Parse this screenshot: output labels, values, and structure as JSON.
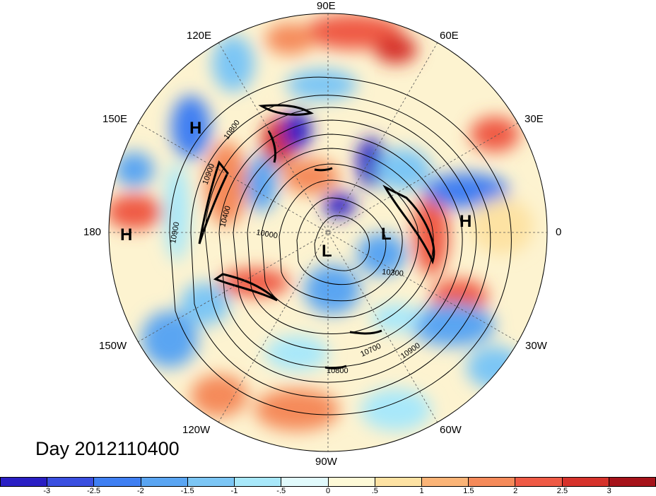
{
  "map": {
    "projection": "north-polar-stereographic",
    "longitude_labels": {
      "lon_90E": "90E",
      "lon_60E": "60E",
      "lon_30E": "30E",
      "lon_0": "0",
      "lon_30W": "30W",
      "lon_60W": "60W",
      "lon_90W": "90W",
      "lon_120W": "120W",
      "lon_150W": "150W",
      "lon_180": "180",
      "lon_150E": "150E",
      "lon_120E": "120E"
    },
    "pressure_centers": {
      "high_150E": "H",
      "high_180": "H",
      "high_europe": "H",
      "low_atlantic": "L",
      "low_pole": "L"
    },
    "contour_labels": {
      "c_10800_north": "10800",
      "c_10900_west": "10900",
      "c_10900_farwest": "10900",
      "c_10400": "10400",
      "c_10000": "10000",
      "c_10300": "10300",
      "c_10700": "10700",
      "c_10900_south": "10900",
      "c_10800_south": "10800"
    }
  },
  "day_label": "Day 2012110400",
  "colorbar": {
    "colors": [
      "#2a1fc4",
      "#3a4fe0",
      "#3f7ff2",
      "#5aa5f2",
      "#7cc6f5",
      "#a8e8fa",
      "#e1fafc",
      "#fdf9d7",
      "#fde2a3",
      "#fbb477",
      "#f58a5a",
      "#ef5a45",
      "#d6322b",
      "#a6131a"
    ],
    "tick_labels": [
      "-3",
      "-2.5",
      "-2",
      "-1.5",
      "-1",
      "-.5",
      "0",
      ".5",
      "1",
      "1.5",
      "2",
      "2.5",
      "3"
    ]
  }
}
